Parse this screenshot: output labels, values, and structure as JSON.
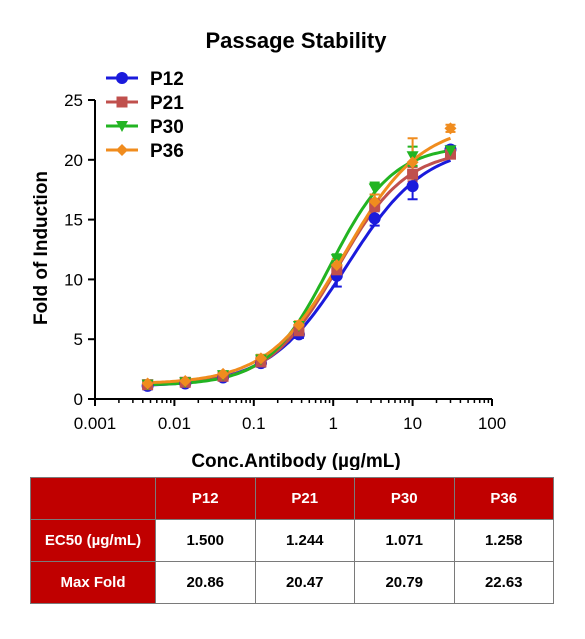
{
  "chart_data": {
    "type": "line",
    "title": "Passage Stability",
    "xlabel": "Conc.Antibody (µg/mL)",
    "ylabel": "Fold of Induction",
    "xscale": "log",
    "xlim": [
      0.001,
      100
    ],
    "ylim": [
      0,
      25
    ],
    "x_ticks": [
      0.001,
      0.01,
      0.1,
      1,
      10,
      100
    ],
    "x_tick_labels": [
      "0.001",
      "0.01",
      "0.1",
      "1",
      "10",
      "100"
    ],
    "y_ticks": [
      0,
      5,
      10,
      15,
      20,
      25
    ],
    "y_tick_labels": [
      "0",
      "5",
      "10",
      "15",
      "20",
      "25"
    ],
    "legend_position": "top-left",
    "grid": false,
    "x": [
      0.0046,
      0.0137,
      0.041,
      0.123,
      0.37,
      1.11,
      3.33,
      10,
      30
    ],
    "series": [
      {
        "name": "P12",
        "color": "#1a1adc",
        "marker": "circle",
        "values": [
          1.1,
          1.3,
          1.8,
          3.0,
          5.4,
          10.3,
          15.1,
          17.8,
          20.86
        ],
        "errors": [
          0.3,
          0.2,
          0.2,
          0.3,
          0.3,
          0.9,
          0.6,
          1.1,
          0.3
        ]
      },
      {
        "name": "P21",
        "color": "#c0504d",
        "marker": "square",
        "values": [
          1.2,
          1.4,
          1.9,
          3.1,
          5.7,
          10.8,
          16.2,
          18.8,
          20.47
        ],
        "errors": [
          0.2,
          0.2,
          0.2,
          0.3,
          0.3,
          0.5,
          0.5,
          0.6,
          0.3
        ]
      },
      {
        "name": "P30",
        "color": "#22b422",
        "marker": "triangle-down",
        "values": [
          1.2,
          1.4,
          2.0,
          3.3,
          6.1,
          11.7,
          17.6,
          20.3,
          20.79
        ],
        "errors": [
          0.2,
          0.2,
          0.2,
          0.3,
          0.3,
          0.4,
          0.5,
          0.8,
          0.3
        ]
      },
      {
        "name": "P36",
        "color": "#f08c1e",
        "marker": "diamond",
        "values": [
          1.3,
          1.5,
          2.1,
          3.4,
          6.2,
          11.2,
          16.5,
          19.8,
          22.63
        ],
        "errors": [
          0.2,
          0.2,
          0.2,
          0.3,
          0.3,
          0.5,
          0.6,
          2.0,
          0.3
        ]
      }
    ]
  },
  "table": {
    "headers": [
      "",
      "P12",
      "P21",
      "P30",
      "P36"
    ],
    "rows": [
      {
        "label": "EC50 (µg/mL)",
        "values": [
          "1.500",
          "1.244",
          "1.071",
          "1.258"
        ]
      },
      {
        "label": "Max Fold",
        "values": [
          "20.86",
          "20.47",
          "20.79",
          "22.63"
        ]
      }
    ]
  }
}
